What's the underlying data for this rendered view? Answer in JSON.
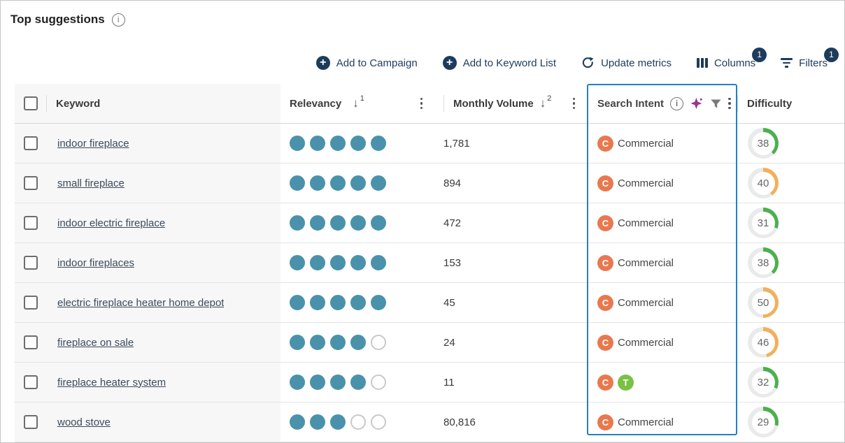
{
  "page": {
    "title": "Top suggestions"
  },
  "toolbar": {
    "add_to_campaign": "Add to Campaign",
    "add_to_keyword_list": "Add to Keyword List",
    "update_metrics": "Update metrics",
    "columns": "Columns",
    "columns_badge": "1",
    "filters": "Filters",
    "filters_badge": "1"
  },
  "table": {
    "headers": {
      "keyword": "Keyword",
      "relevancy": "Relevancy",
      "relevancy_sort_order": "1",
      "monthly_volume": "Monthly Volume",
      "monthly_volume_sort_order": "2",
      "search_intent": "Search Intent",
      "difficulty": "Difficulty"
    },
    "rows": [
      {
        "keyword": "indoor fireplace",
        "relevancy": 5,
        "monthly_volume": "1,781",
        "intents": [
          {
            "code": "C",
            "name": "commercial",
            "color": "#e8794f"
          }
        ],
        "intent_label": "Commercial",
        "difficulty": 38,
        "difficulty_color": "#4caf50"
      },
      {
        "keyword": "small fireplace",
        "relevancy": 5,
        "monthly_volume": "894",
        "intents": [
          {
            "code": "C",
            "name": "commercial",
            "color": "#e8794f"
          }
        ],
        "intent_label": "Commercial",
        "difficulty": 40,
        "difficulty_color": "#f0b15c"
      },
      {
        "keyword": "indoor electric fireplace",
        "relevancy": 5,
        "monthly_volume": "472",
        "intents": [
          {
            "code": "C",
            "name": "commercial",
            "color": "#e8794f"
          }
        ],
        "intent_label": "Commercial",
        "difficulty": 31,
        "difficulty_color": "#4caf50"
      },
      {
        "keyword": "indoor fireplaces",
        "relevancy": 5,
        "monthly_volume": "153",
        "intents": [
          {
            "code": "C",
            "name": "commercial",
            "color": "#e8794f"
          }
        ],
        "intent_label": "Commercial",
        "difficulty": 38,
        "difficulty_color": "#4caf50"
      },
      {
        "keyword": "electric fireplace heater home depot",
        "relevancy": 5,
        "monthly_volume": "45",
        "intents": [
          {
            "code": "C",
            "name": "commercial",
            "color": "#e8794f"
          }
        ],
        "intent_label": "Commercial",
        "difficulty": 50,
        "difficulty_color": "#f0b15c"
      },
      {
        "keyword": "fireplace on sale",
        "relevancy": 4,
        "monthly_volume": "24",
        "intents": [
          {
            "code": "C",
            "name": "commercial",
            "color": "#e8794f"
          }
        ],
        "intent_label": "Commercial",
        "difficulty": 46,
        "difficulty_color": "#f0b15c"
      },
      {
        "keyword": "fireplace heater system",
        "relevancy": 4,
        "monthly_volume": "11",
        "intents": [
          {
            "code": "C",
            "name": "commercial",
            "color": "#e8794f"
          },
          {
            "code": "T",
            "name": "transactional",
            "color": "#7bc143"
          }
        ],
        "intent_label": "",
        "difficulty": 32,
        "difficulty_color": "#4caf50"
      },
      {
        "keyword": "wood stove",
        "relevancy": 3,
        "monthly_volume": "80,816",
        "intents": [
          {
            "code": "C",
            "name": "commercial",
            "color": "#e8794f"
          }
        ],
        "intent_label": "Commercial",
        "difficulty": 29,
        "difficulty_color": "#4caf50"
      }
    ]
  },
  "colors": {
    "highlight_border": "#2380c2",
    "relevancy_dot": "#4a92ab",
    "difficulty_low": "#4caf50",
    "difficulty_mid": "#f0b15c",
    "commercial": "#e8794f",
    "transactional": "#7bc143",
    "toolbar_accent": "#1d3c5c"
  }
}
